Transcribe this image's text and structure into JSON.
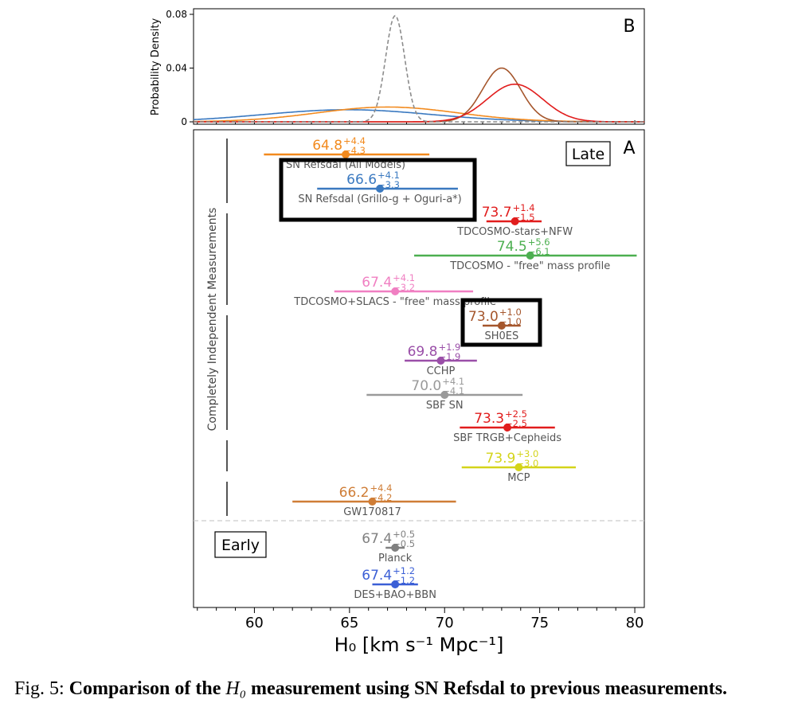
{
  "panel_b": {
    "label": "B",
    "ylabel": "Probability Density",
    "yticks": [
      "0",
      "0.04",
      "0.08"
    ],
    "ylim": [
      0,
      0.082
    ],
    "xlim": [
      56.8,
      80.5
    ],
    "curves": [
      {
        "mu": 64.9,
        "sigma": 4.4,
        "peak": 0.009,
        "color": "#3a79c0",
        "dash": false
      },
      {
        "mu": 67.0,
        "sigma": 3.7,
        "peak": 0.011,
        "color": "#f28a1e",
        "dash": false
      },
      {
        "mu": 73.0,
        "sigma": 1.0,
        "peak": 0.04,
        "color": "#a5562c",
        "dash": false
      },
      {
        "mu": 73.7,
        "sigma": 1.45,
        "peak": 0.028,
        "color": "#e11d1d",
        "dash": false
      },
      {
        "mu": 67.4,
        "sigma": 0.5,
        "peak": 0.079,
        "color": "#8c8c8c",
        "dash": true
      }
    ]
  },
  "panel_a": {
    "label": "A",
    "late_label": "Late",
    "early_label": "Early",
    "side_label": "Completely Independent Measurements",
    "xlabel": "H₀ [km s⁻¹ Mpc⁻¹]",
    "xticks": [
      "60",
      "65",
      "70",
      "75",
      "80"
    ],
    "xlim": [
      56.8,
      80.5
    ]
  },
  "chart_data": {
    "type": "scatter",
    "xlabel": "H₀ [km s⁻¹ Mpc⁻¹]",
    "xlim": [
      56.8,
      80.5
    ],
    "measurements": [
      {
        "name": "SN Refsdal (All Models)",
        "value": 64.8,
        "plus": 4.4,
        "minus": 4.3,
        "value_text": "64.8",
        "plus_text": "+4.4",
        "minus_text": "−4.3",
        "color": "#f28a1e",
        "group": "late",
        "boxed": false
      },
      {
        "name": "SN Refsdal (Grillo-g + Oguri-a*)",
        "value": 66.6,
        "plus": 4.1,
        "minus": 3.3,
        "value_text": "66.6",
        "plus_text": "+4.1",
        "minus_text": "−3.3",
        "color": "#3a79c0",
        "group": "late",
        "boxed": true
      },
      {
        "name": "TDCOSMO-stars+NFW",
        "value": 73.7,
        "plus": 1.4,
        "minus": 1.5,
        "value_text": "73.7",
        "plus_text": "+1.4",
        "minus_text": "−1.5",
        "color": "#e11d1d",
        "group": "late",
        "boxed": false
      },
      {
        "name": "TDCOSMO - \"free\" mass profile",
        "value": 74.5,
        "plus": 5.6,
        "minus": 6.1,
        "value_text": "74.5",
        "plus_text": "+5.6",
        "minus_text": "−6.1",
        "color": "#4caf50",
        "group": "late",
        "boxed": false
      },
      {
        "name": "TDCOSMO+SLACS - \"free\" mass profile",
        "value": 67.4,
        "plus": 4.1,
        "minus": 3.2,
        "value_text": "67.4",
        "plus_text": "+4.1",
        "minus_text": "−3.2",
        "color": "#f07fc2",
        "group": "late",
        "boxed": false
      },
      {
        "name": "SH0ES",
        "value": 73.0,
        "plus": 1.0,
        "minus": 1.0,
        "value_text": "73.0",
        "plus_text": "+1.0",
        "minus_text": "−1.0",
        "color": "#a5562c",
        "group": "late",
        "boxed": true
      },
      {
        "name": "CCHP",
        "value": 69.8,
        "plus": 1.9,
        "minus": 1.9,
        "value_text": "69.8",
        "plus_text": "+1.9",
        "minus_text": "−1.9",
        "color": "#9a4fa8",
        "group": "late",
        "boxed": false
      },
      {
        "name": "SBF SN",
        "value": 70.0,
        "plus": 4.1,
        "minus": 4.1,
        "value_text": "70.0",
        "plus_text": "+4.1",
        "minus_text": "−4.1",
        "color": "#9a9a9a",
        "group": "late",
        "boxed": false
      },
      {
        "name": "SBF TRGB+Cepheids",
        "value": 73.3,
        "plus": 2.5,
        "minus": 2.5,
        "value_text": "73.3",
        "plus_text": "+2.5",
        "minus_text": "−2.5",
        "color": "#e11d1d",
        "group": "late",
        "boxed": false
      },
      {
        "name": "MCP",
        "value": 73.9,
        "plus": 3.0,
        "minus": 3.0,
        "value_text": "73.9",
        "plus_text": "+3.0",
        "minus_text": "−3.0",
        "color": "#d4d41a",
        "group": "late",
        "boxed": false
      },
      {
        "name": "GW170817",
        "value": 66.2,
        "plus": 4.4,
        "minus": 4.2,
        "value_text": "66.2",
        "plus_text": "+4.4",
        "minus_text": "−4.2",
        "color": "#cf7d36",
        "group": "late",
        "boxed": false
      },
      {
        "name": "Planck",
        "value": 67.4,
        "plus": 0.5,
        "minus": 0.5,
        "value_text": "67.4",
        "plus_text": "+0.5",
        "minus_text": "−0.5",
        "color": "#808080",
        "group": "early",
        "boxed": false
      },
      {
        "name": "DES+BAO+BBN",
        "value": 67.4,
        "plus": 1.2,
        "minus": 1.2,
        "value_text": "67.4",
        "plus_text": "+1.2",
        "minus_text": "−1.2",
        "color": "#3b5fd6",
        "group": "early",
        "boxed": false
      }
    ]
  },
  "caption": {
    "prefix": "Fig. 5: ",
    "bold_start": "Comparison of the ",
    "symbol": "H₀",
    "bold_end": " measurement using SN Refsdal to previous measurements."
  }
}
